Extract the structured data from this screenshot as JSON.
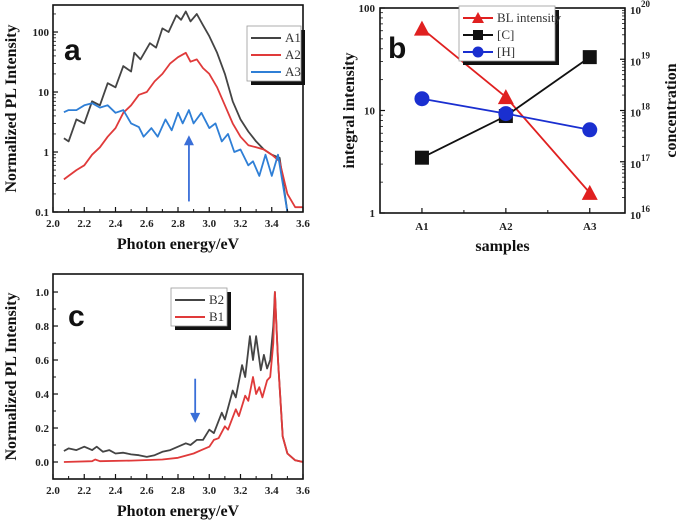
{
  "chart_data": [
    {
      "panel": "a",
      "type": "line",
      "xlabel": "Photon energy/eV",
      "ylabel": "Normalized PL Intensity",
      "xlim": [
        2.0,
        3.6
      ],
      "ylim": [
        0.1,
        282
      ],
      "yscale": "log",
      "xticks": [
        2.0,
        2.2,
        2.4,
        2.6,
        2.8,
        3.0,
        3.2,
        3.4,
        3.6
      ],
      "xtick_labels": [
        "2.0",
        "2.2",
        "2.4",
        "2.6",
        "2.8",
        "3.0",
        "3.2",
        "3.4",
        "3.6"
      ],
      "yticks": [
        0.1,
        1,
        10,
        100
      ],
      "ytick_labels": [
        "0.1",
        "1",
        "10",
        "100"
      ],
      "legend_placement": "top-right",
      "annotations": [
        {
          "type": "arrow",
          "direction": "up",
          "x": 2.87,
          "from": 0.15,
          "to": 1.9,
          "color": "#3a6fd8"
        }
      ],
      "series": [
        {
          "name": "A1",
          "color": "#444444",
          "x": [
            2.07,
            2.1,
            2.15,
            2.2,
            2.25,
            2.3,
            2.35,
            2.4,
            2.45,
            2.5,
            2.52,
            2.56,
            2.62,
            2.66,
            2.7,
            2.74,
            2.79,
            2.82,
            2.85,
            2.88,
            2.92,
            2.96,
            3.0,
            3.05,
            3.1,
            3.15,
            3.2,
            3.25,
            3.3,
            3.35,
            3.4,
            3.45,
            3.5
          ],
          "y": [
            1.7,
            1.5,
            3.5,
            3,
            7,
            6,
            14,
            12,
            27,
            22,
            45,
            35,
            65,
            55,
            115,
            100,
            190,
            160,
            220,
            150,
            200,
            130,
            85,
            45,
            20,
            7,
            3.5,
            2.2,
            1.5,
            1.1,
            0.9,
            0.8,
            0.1
          ]
        },
        {
          "name": "A2",
          "color": "#e03a3a",
          "x": [
            2.07,
            2.1,
            2.15,
            2.2,
            2.25,
            2.3,
            2.35,
            2.4,
            2.45,
            2.5,
            2.55,
            2.6,
            2.65,
            2.7,
            2.75,
            2.8,
            2.85,
            2.88,
            2.92,
            2.96,
            3.0,
            3.05,
            3.1,
            3.15,
            3.2,
            3.25,
            3.3,
            3.35,
            3.4,
            3.45,
            3.5,
            3.55,
            3.6
          ],
          "y": [
            0.35,
            0.4,
            0.5,
            0.6,
            0.9,
            1.2,
            1.8,
            2.5,
            4.5,
            6,
            9,
            10,
            15,
            20,
            30,
            38,
            45,
            32,
            35,
            25,
            20,
            12,
            6,
            3,
            1.8,
            1.3,
            1.2,
            1.1,
            0.9,
            0.7,
            0.2,
            0.12,
            0.12
          ]
        },
        {
          "name": "A3",
          "color": "#2f7fd6",
          "x": [
            2.07,
            2.1,
            2.15,
            2.2,
            2.25,
            2.3,
            2.35,
            2.4,
            2.45,
            2.5,
            2.55,
            2.58,
            2.63,
            2.67,
            2.72,
            2.76,
            2.8,
            2.83,
            2.87,
            2.9,
            2.95,
            3.0,
            3.04,
            3.08,
            3.12,
            3.16,
            3.2,
            3.25,
            3.28,
            3.32,
            3.36,
            3.4,
            3.44,
            3.47,
            3.5
          ],
          "y": [
            4.6,
            5,
            5,
            6,
            6.5,
            5.5,
            6,
            4.5,
            5,
            3,
            2.6,
            1.8,
            2.5,
            1.8,
            3.5,
            2.3,
            4.5,
            3,
            5,
            3,
            4.5,
            2.5,
            3,
            1.5,
            2,
            1,
            1.1,
            0.6,
            0.7,
            0.4,
            0.9,
            0.4,
            0.9,
            0.3,
            0.1
          ]
        }
      ]
    },
    {
      "panel": "b",
      "type": "line",
      "xlabel": "samples",
      "ylabel": "integral intensity",
      "y2label": "concentration",
      "categories": [
        "A1",
        "A2",
        "A3"
      ],
      "yscale": "log",
      "ylim": [
        1,
        100
      ],
      "yticks": [
        1,
        10,
        100
      ],
      "ytick_labels": [
        "1",
        "10",
        "100"
      ],
      "y2scale": "log",
      "y2lim": [
        1e+16,
        1e+20
      ],
      "y2tick_base": "10",
      "y2tick_exponents": [
        "16",
        "17",
        "18",
        "19",
        "20"
      ],
      "legend_placement": "top-center",
      "series": [
        {
          "name": "BL intensity",
          "axis": "left",
          "color": "#e02020",
          "marker": "triangle",
          "values": [
            63,
            13.5,
            1.57
          ]
        },
        {
          "name": "[C]",
          "axis": "right",
          "color": "#111111",
          "marker": "square",
          "values": [
            1.2e+17,
            7.8e+17,
            1.1e+19
          ]
        },
        {
          "name": "[H]",
          "axis": "right",
          "color": "#1a2fd0",
          "marker": "circle",
          "values": [
            1.7e+18,
            8.7e+17,
            4.2e+17
          ]
        }
      ]
    },
    {
      "panel": "c",
      "type": "line",
      "xlabel": "Photon energy/eV",
      "ylabel": "Normalized PL Intensity",
      "xlim": [
        2.0,
        3.6
      ],
      "ylim": [
        -0.1,
        1.106
      ],
      "yscale": "linear",
      "xticks": [
        2.0,
        2.2,
        2.4,
        2.6,
        2.8,
        3.0,
        3.2,
        3.4,
        3.6
      ],
      "xtick_labels": [
        "2.0",
        "2.2",
        "2.4",
        "2.6",
        "2.8",
        "3.0",
        "3.2",
        "3.4",
        "3.6"
      ],
      "yticks": [
        0.0,
        0.2,
        0.4,
        0.6,
        0.8,
        1.0
      ],
      "ytick_labels": [
        "0.0",
        "0.2",
        "0.4",
        "0.6",
        "0.8",
        "1.0"
      ],
      "legend_placement": "top-center",
      "annotations": [
        {
          "type": "arrow",
          "direction": "down",
          "x": 2.91,
          "from": 0.49,
          "to": 0.23,
          "color": "#3a6fd8"
        }
      ],
      "series": [
        {
          "name": "B2",
          "color": "#444444",
          "x": [
            2.07,
            2.1,
            2.15,
            2.2,
            2.25,
            2.28,
            2.32,
            2.36,
            2.4,
            2.45,
            2.5,
            2.55,
            2.6,
            2.65,
            2.7,
            2.75,
            2.8,
            2.85,
            2.88,
            2.92,
            2.96,
            3.0,
            3.03,
            3.08,
            3.1,
            3.15,
            3.17,
            3.21,
            3.23,
            3.26,
            3.28,
            3.3,
            3.33,
            3.35,
            3.37,
            3.39,
            3.41,
            3.42,
            3.44,
            3.47,
            3.5,
            3.55,
            3.6
          ],
          "y": [
            0.065,
            0.08,
            0.07,
            0.09,
            0.07,
            0.09,
            0.06,
            0.07,
            0.05,
            0.055,
            0.045,
            0.04,
            0.03,
            0.04,
            0.06,
            0.07,
            0.09,
            0.11,
            0.1,
            0.13,
            0.13,
            0.19,
            0.17,
            0.29,
            0.25,
            0.42,
            0.38,
            0.57,
            0.5,
            0.74,
            0.6,
            0.74,
            0.54,
            0.63,
            0.55,
            0.6,
            0.8,
            1.0,
            0.6,
            0.15,
            0.05,
            0.01,
            0.0
          ]
        },
        {
          "name": "B1",
          "color": "#e03a3a",
          "x": [
            2.07,
            2.25,
            2.27,
            2.3,
            2.5,
            2.7,
            2.8,
            2.9,
            2.95,
            3.0,
            3.03,
            3.06,
            3.1,
            3.12,
            3.17,
            3.19,
            3.23,
            3.25,
            3.28,
            3.3,
            3.32,
            3.34,
            3.37,
            3.39,
            3.41,
            3.42,
            3.44,
            3.47,
            3.5,
            3.55,
            3.6
          ],
          "y": [
            0.0,
            0.005,
            0.015,
            0.005,
            0.008,
            0.015,
            0.025,
            0.05,
            0.07,
            0.09,
            0.13,
            0.14,
            0.21,
            0.19,
            0.31,
            0.27,
            0.39,
            0.36,
            0.5,
            0.4,
            0.44,
            0.38,
            0.48,
            0.5,
            0.7,
            1.0,
            0.6,
            0.15,
            0.05,
            0.01,
            0.0
          ]
        }
      ]
    }
  ],
  "panel_labels": [
    "a",
    "b",
    "c"
  ]
}
